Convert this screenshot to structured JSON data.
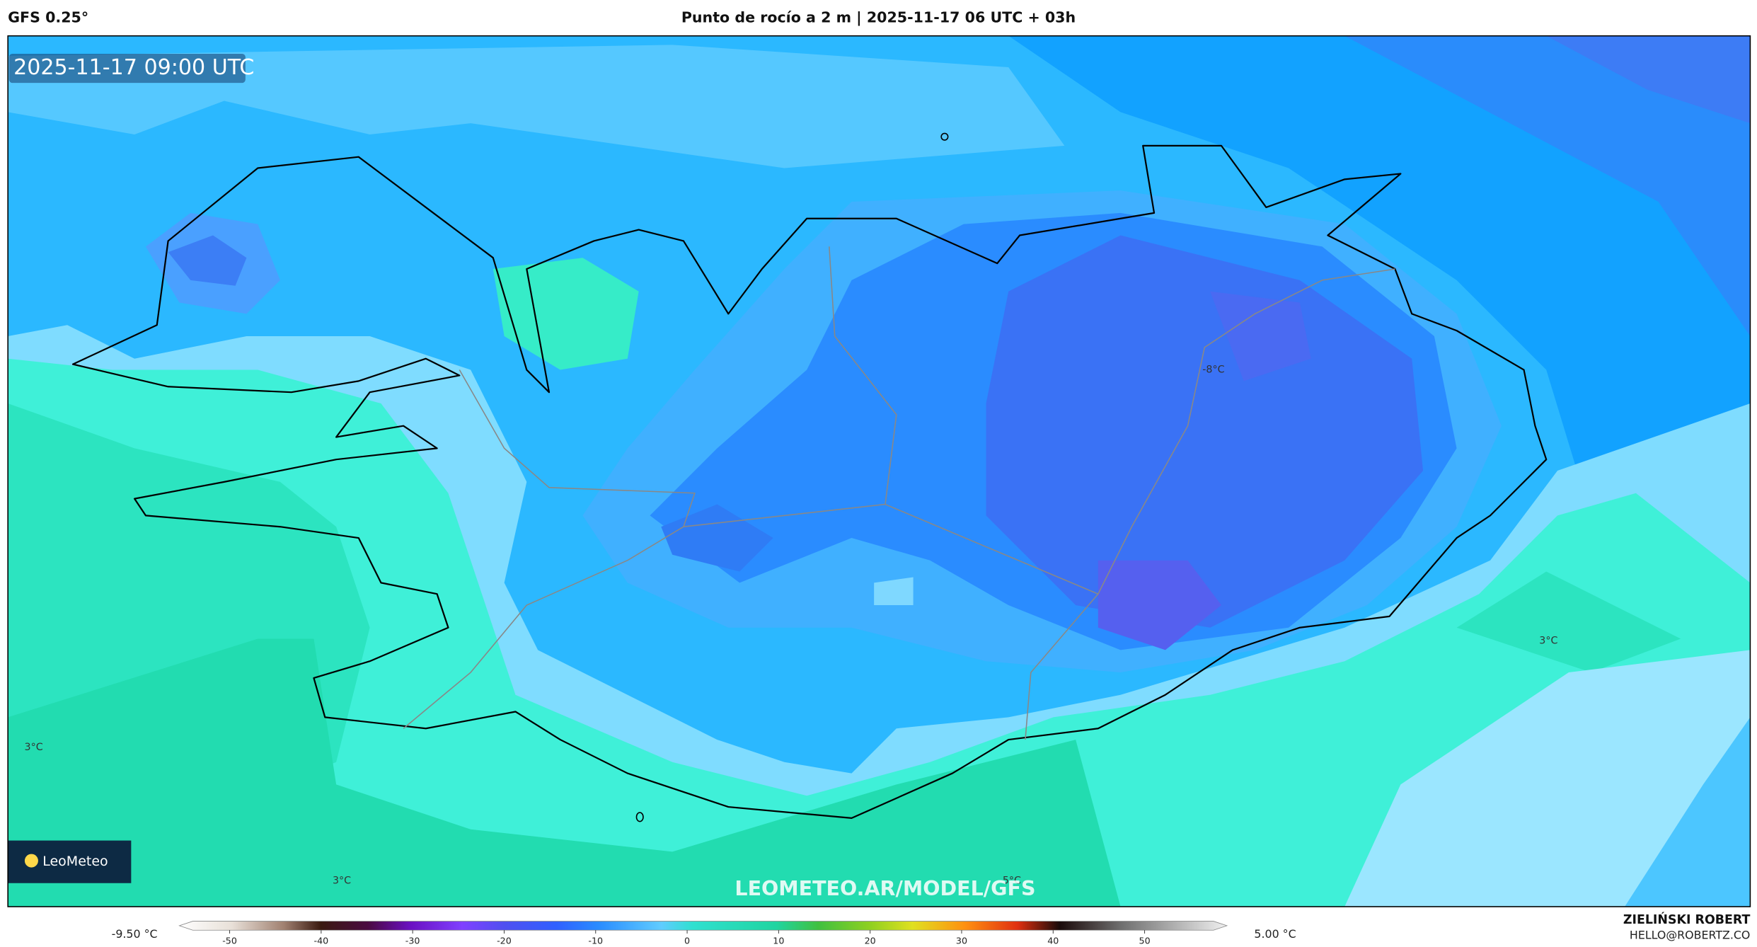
{
  "header": {
    "model": "GFS 0.25°",
    "title": "Punto de rocío a 2 m | 2025-11-17 06 UTC + 03h"
  },
  "map": {
    "timestamp": "2025-11-17 09:00 UTC",
    "labels": [
      "-8°C",
      "3°C",
      "3°C",
      "3°C",
      "5°C"
    ],
    "watermark": "LEOMETEO.AR/MODEL/GFS",
    "logo": "LeoMeteo"
  },
  "colorbar": {
    "ticks": [
      -50,
      -40,
      -30,
      -20,
      -10,
      0,
      10,
      20,
      30,
      40,
      50
    ],
    "range": [
      -55.5,
      59
    ],
    "min_label": "-9.50 °C",
    "max_label": "5.00 °C"
  },
  "footer": {
    "author": "ZIELIŃSKI ROBERT",
    "email": "HELLO@ROBERTZ.CO"
  }
}
